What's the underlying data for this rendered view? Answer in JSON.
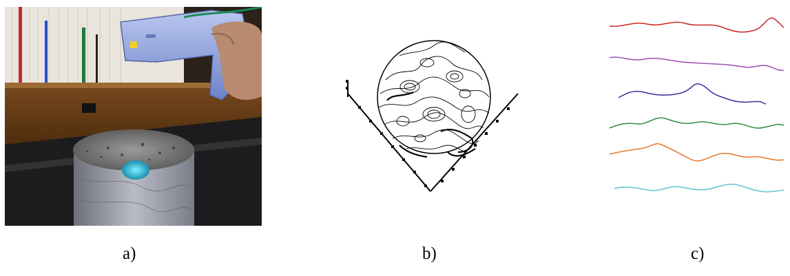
{
  "figure": {
    "captions": [
      "a)",
      "b)",
      "c)"
    ],
    "profile_colors": [
      "#c62828",
      "#9c4fb2",
      "#3b2f9e",
      "#2e8b3a",
      "#e6772b",
      "#5fc4d0"
    ]
  }
}
